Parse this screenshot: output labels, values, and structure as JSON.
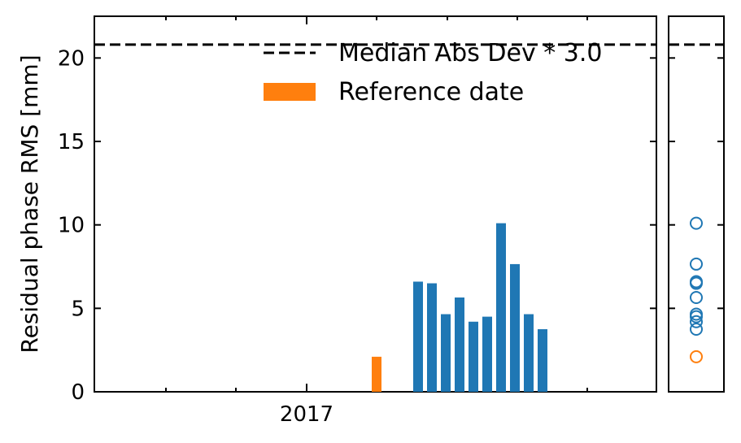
{
  "chart_data": {
    "type": "bar",
    "ylabel": "Residual phase RMS [mm]",
    "ylim": [
      0,
      22.5
    ],
    "yticks": [
      0,
      5,
      10,
      15,
      20
    ],
    "xtick_labels": [
      "2017"
    ],
    "threshold": {
      "label": "Median Abs Dev * 3.0",
      "value": 20.8
    },
    "legend": {
      "position": "upper-center",
      "entries": [
        {
          "label": "Median Abs Dev * 3.0",
          "style": "dashed-line",
          "color": "#000000"
        },
        {
          "label": "Reference date",
          "style": "patch",
          "color": "#ff7f0e"
        }
      ]
    },
    "series": [
      {
        "color": "#1f77b4",
        "values": [
          6.6,
          6.5,
          4.65,
          5.65,
          4.2,
          4.5,
          10.1,
          7.65,
          4.65,
          3.75
        ]
      },
      {
        "color": "#ff7f0e",
        "values": [
          2.1
        ]
      }
    ],
    "side_panel": {
      "type": "scatter",
      "points": [
        {
          "value": 10.1,
          "color": "#1f77b4"
        },
        {
          "value": 7.65,
          "color": "#1f77b4"
        },
        {
          "value": 6.6,
          "color": "#1f77b4"
        },
        {
          "value": 6.5,
          "color": "#1f77b4"
        },
        {
          "value": 5.65,
          "color": "#1f77b4"
        },
        {
          "value": 4.65,
          "color": "#1f77b4"
        },
        {
          "value": 4.5,
          "color": "#1f77b4"
        },
        {
          "value": 4.2,
          "color": "#1f77b4"
        },
        {
          "value": 3.75,
          "color": "#1f77b4"
        },
        {
          "value": 2.1,
          "color": "#ff7f0e"
        }
      ]
    }
  }
}
